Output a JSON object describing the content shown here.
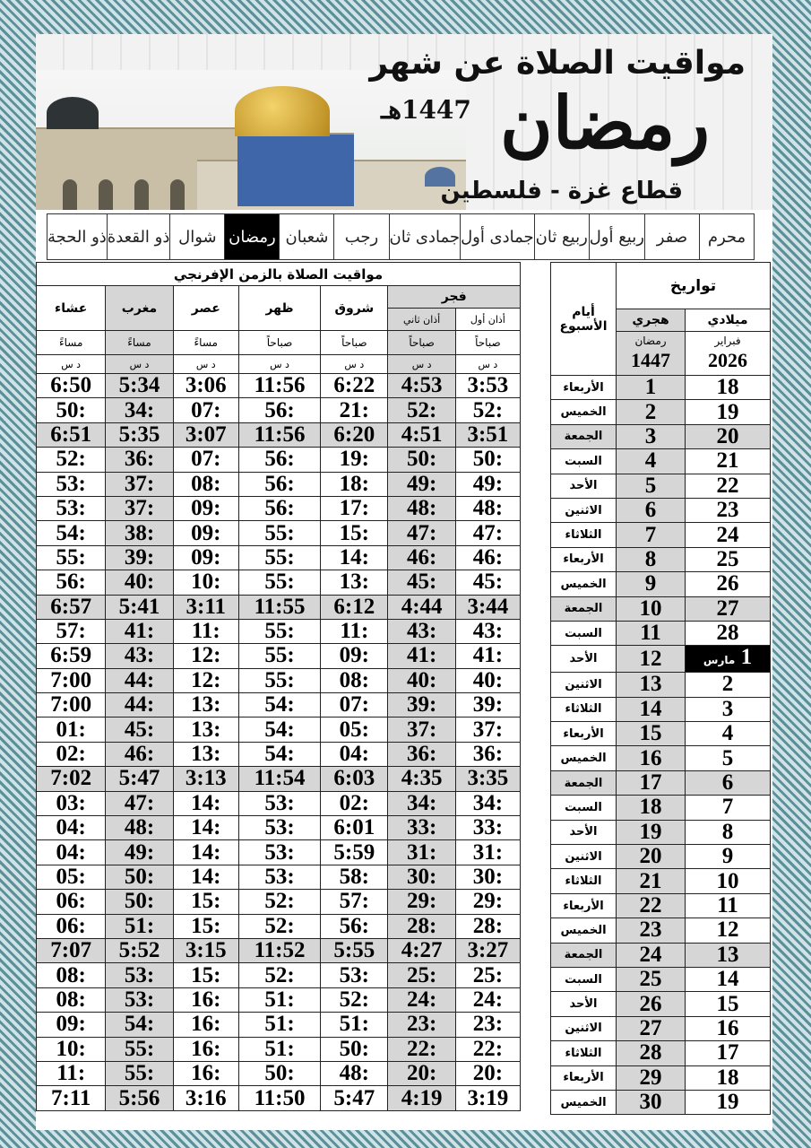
{
  "header": {
    "title": "مواقيت الصلاة عن شهر",
    "month": "رمضان",
    "year": "1447هـ",
    "location": "قطاع غزة - فلسطين"
  },
  "months": [
    "محرم",
    "صفر",
    "ربيع أول",
    "ربيع ثان",
    "جمادى أول",
    "جمادى ثان",
    "رجب",
    "شعبان",
    "رمضان",
    "شوال",
    "ذو القعدة",
    "ذو الحجة"
  ],
  "active_month": "رمضان",
  "table": {
    "prayer_title": "مواقيت الصلاة بالزمن الإفرنجي",
    "fajr": "فجر",
    "fajr1": "أذان أول",
    "fajr2": "أذان ثاني",
    "shurooq": "شروق",
    "dhuhr": "ظهر",
    "asr": "عصر",
    "maghrib": "مغرب",
    "isha": "عشاء",
    "morning": "صباحاً",
    "evening": "مساءً",
    "unit": "د س",
    "dates_title": "تواريخ",
    "hijri": "هجري",
    "gregorian": "ميلادي",
    "days": "أيام الأسبوع",
    "hijri_month": "رمضان",
    "hijri_year": "1447",
    "greg_month": "فبراير",
    "greg_year": "2026",
    "march_label": "مارس"
  },
  "colors": {
    "shade": "#d6d6d6",
    "highlight": "#000000",
    "border": "#5b8f9a"
  },
  "rows": [
    {
      "day": "الأربعاء",
      "h": "1",
      "g": "18",
      "t": [
        "3:53",
        "4:53",
        "6:22",
        "11:56",
        "3:06",
        "5:34",
        "6:50"
      ]
    },
    {
      "day": "الخميس",
      "h": "2",
      "g": "19",
      "t": [
        ":52",
        ":52",
        ":21",
        ":56",
        ":07",
        ":34",
        ":50"
      ]
    },
    {
      "day": "الجمعة",
      "h": "3",
      "g": "20",
      "t": [
        "3:51",
        "4:51",
        "6:20",
        "11:56",
        "3:07",
        "5:35",
        "6:51"
      ]
    },
    {
      "day": "السبت",
      "h": "4",
      "g": "21",
      "t": [
        ":50",
        ":50",
        ":19",
        ":56",
        ":07",
        ":36",
        ":52"
      ]
    },
    {
      "day": "الأحد",
      "h": "5",
      "g": "22",
      "t": [
        ":49",
        ":49",
        ":18",
        ":56",
        ":08",
        ":37",
        ":53"
      ]
    },
    {
      "day": "الاثنين",
      "h": "6",
      "g": "23",
      "t": [
        ":48",
        ":48",
        ":17",
        ":56",
        ":09",
        ":37",
        ":53"
      ]
    },
    {
      "day": "الثلاثاء",
      "h": "7",
      "g": "24",
      "t": [
        ":47",
        ":47",
        ":15",
        ":55",
        ":09",
        ":38",
        ":54"
      ]
    },
    {
      "day": "الأربعاء",
      "h": "8",
      "g": "25",
      "t": [
        ":46",
        ":46",
        ":14",
        ":55",
        ":09",
        ":39",
        ":55"
      ]
    },
    {
      "day": "الخميس",
      "h": "9",
      "g": "26",
      "t": [
        ":45",
        ":45",
        ":13",
        ":55",
        ":10",
        ":40",
        ":56"
      ]
    },
    {
      "day": "الجمعة",
      "h": "10",
      "g": "27",
      "t": [
        "3:44",
        "4:44",
        "6:12",
        "11:55",
        "3:11",
        "5:41",
        "6:57"
      ]
    },
    {
      "day": "السبت",
      "h": "11",
      "g": "28",
      "t": [
        ":43",
        ":43",
        ":11",
        ":55",
        ":11",
        ":41",
        ":57"
      ]
    },
    {
      "day": "الأحد",
      "h": "12",
      "g": "1",
      "t": [
        ":41",
        ":41",
        ":09",
        ":55",
        ":12",
        ":43",
        "6:59"
      ]
    },
    {
      "day": "الاثنين",
      "h": "13",
      "g": "2",
      "t": [
        ":40",
        ":40",
        ":08",
        ":55",
        ":12",
        ":44",
        "7:00"
      ]
    },
    {
      "day": "الثلاثاء",
      "h": "14",
      "g": "3",
      "t": [
        ":39",
        ":39",
        ":07",
        ":54",
        ":13",
        ":44",
        "7:00"
      ]
    },
    {
      "day": "الأربعاء",
      "h": "15",
      "g": "4",
      "t": [
        ":37",
        ":37",
        ":05",
        ":54",
        ":13",
        ":45",
        ":01"
      ]
    },
    {
      "day": "الخميس",
      "h": "16",
      "g": "5",
      "t": [
        ":36",
        ":36",
        ":04",
        ":54",
        ":13",
        ":46",
        ":02"
      ]
    },
    {
      "day": "الجمعة",
      "h": "17",
      "g": "6",
      "t": [
        "3:35",
        "4:35",
        "6:03",
        "11:54",
        "3:13",
        "5:47",
        "7:02"
      ]
    },
    {
      "day": "السبت",
      "h": "18",
      "g": "7",
      "t": [
        ":34",
        ":34",
        ":02",
        ":53",
        ":14",
        ":47",
        ":03"
      ]
    },
    {
      "day": "الأحد",
      "h": "19",
      "g": "8",
      "t": [
        ":33",
        ":33",
        "6:01",
        ":53",
        ":14",
        ":48",
        ":04"
      ]
    },
    {
      "day": "الاثنين",
      "h": "20",
      "g": "9",
      "t": [
        ":31",
        ":31",
        "5:59",
        ":53",
        ":14",
        ":49",
        ":04"
      ]
    },
    {
      "day": "الثلاثاء",
      "h": "21",
      "g": "10",
      "t": [
        ":30",
        ":30",
        ":58",
        ":53",
        ":14",
        ":50",
        ":05"
      ]
    },
    {
      "day": "الأربعاء",
      "h": "22",
      "g": "11",
      "t": [
        ":29",
        ":29",
        ":57",
        ":52",
        ":15",
        ":50",
        ":06"
      ]
    },
    {
      "day": "الخميس",
      "h": "23",
      "g": "12",
      "t": [
        ":28",
        ":28",
        ":56",
        ":52",
        ":15",
        ":51",
        ":06"
      ]
    },
    {
      "day": "الجمعة",
      "h": "24",
      "g": "13",
      "t": [
        "3:27",
        "4:27",
        "5:55",
        "11:52",
        "3:15",
        "5:52",
        "7:07"
      ]
    },
    {
      "day": "السبت",
      "h": "25",
      "g": "14",
      "t": [
        ":25",
        ":25",
        ":53",
        ":52",
        ":15",
        ":53",
        ":08"
      ]
    },
    {
      "day": "الأحد",
      "h": "26",
      "g": "15",
      "t": [
        ":24",
        ":24",
        ":52",
        ":51",
        ":16",
        ":53",
        ":08"
      ]
    },
    {
      "day": "الاثنين",
      "h": "27",
      "g": "16",
      "t": [
        ":23",
        ":23",
        ":51",
        ":51",
        ":16",
        ":54",
        ":09"
      ]
    },
    {
      "day": "الثلاثاء",
      "h": "28",
      "g": "17",
      "t": [
        ":22",
        ":22",
        ":50",
        ":51",
        ":16",
        ":55",
        ":10"
      ]
    },
    {
      "day": "الأربعاء",
      "h": "29",
      "g": "18",
      "t": [
        ":20",
        ":20",
        ":48",
        ":50",
        ":16",
        ":55",
        ":11"
      ]
    },
    {
      "day": "الخميس",
      "h": "30",
      "g": "19",
      "t": [
        "3:19",
        "4:19",
        "5:47",
        "11:50",
        "3:16",
        "5:56",
        "7:11"
      ]
    }
  ]
}
